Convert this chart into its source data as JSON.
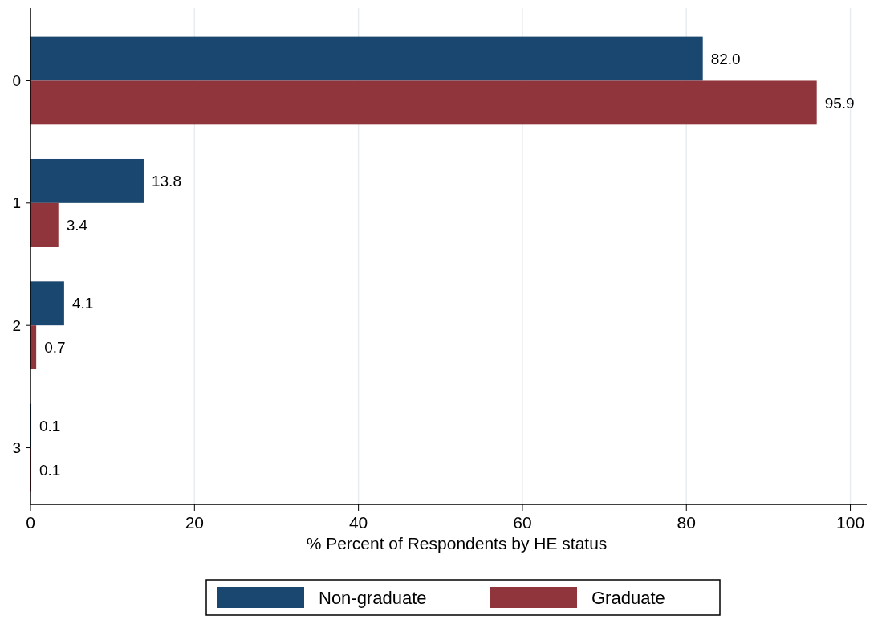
{
  "chart_data": {
    "type": "bar",
    "orientation": "horizontal",
    "categories": [
      "0",
      "1",
      "2",
      "3"
    ],
    "series": [
      {
        "name": "Non-graduate",
        "color": "#1a476f",
        "values": [
          82.0,
          13.8,
          4.1,
          0.1
        ],
        "value_labels": [
          "82.0",
          "13.8",
          "4.1",
          "0.1"
        ]
      },
      {
        "name": "Graduate",
        "color": "#90353b",
        "values": [
          95.9,
          3.4,
          0.7,
          0.1
        ],
        "value_labels": [
          "95.9",
          "3.4",
          "0.7",
          "0.1"
        ]
      }
    ],
    "xlabel": "% Percent of Respondents by HE status",
    "xlim": [
      0,
      102
    ],
    "xticks": [
      0,
      20,
      40,
      60,
      80,
      100
    ],
    "grid": "x",
    "legend": "bottom"
  }
}
